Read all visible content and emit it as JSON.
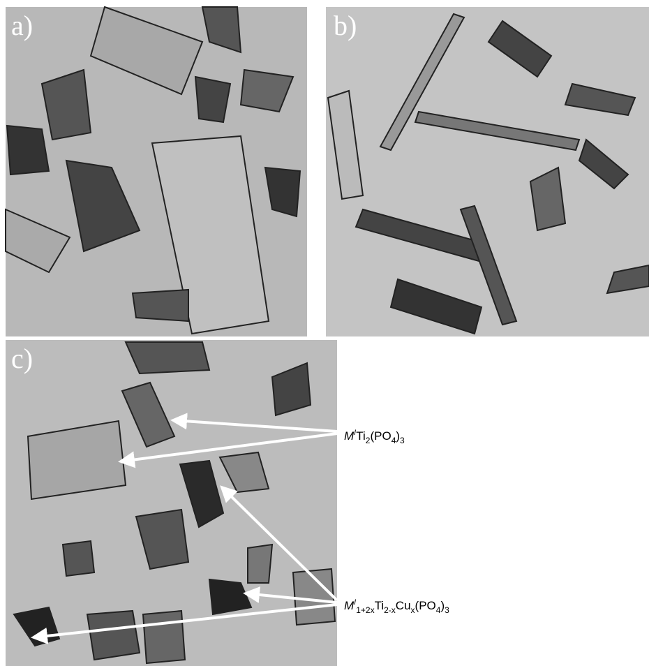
{
  "panels": [
    {
      "label": "a)"
    },
    {
      "label": "b)"
    },
    {
      "label": "c)"
    }
  ],
  "annotations": [
    {
      "parts": [
        {
          "text": "M",
          "style": "italic"
        },
        {
          "text": "I",
          "style": "sup-italic"
        },
        {
          "text": "Ti",
          "style": "normal"
        },
        {
          "text": "2",
          "style": "sub"
        },
        {
          "text": "(PO",
          "style": "normal"
        },
        {
          "text": "4",
          "style": "sub"
        },
        {
          "text": ")",
          "style": "normal"
        },
        {
          "text": "3",
          "style": "sub"
        }
      ]
    },
    {
      "parts": [
        {
          "text": "M",
          "style": "italic"
        },
        {
          "text": "I",
          "style": "sup-italic"
        },
        {
          "text": "1+2x",
          "style": "sub"
        },
        {
          "text": "Ti",
          "style": "normal"
        },
        {
          "text": "2-x",
          "style": "sub"
        },
        {
          "text": "Cu",
          "style": "normal"
        },
        {
          "text": "x",
          "style": "sub"
        },
        {
          "text": "(PO",
          "style": "normal"
        },
        {
          "text": "4",
          "style": "sub"
        },
        {
          "text": ")",
          "style": "normal"
        },
        {
          "text": "3",
          "style": "sub"
        }
      ]
    }
  ]
}
